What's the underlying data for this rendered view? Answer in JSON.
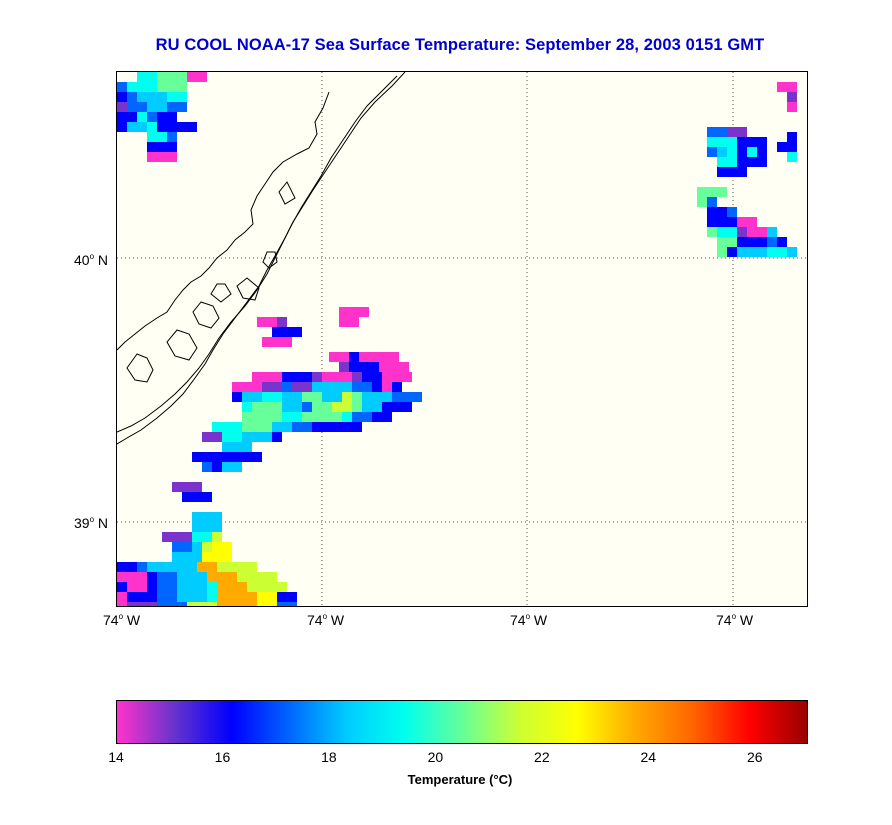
{
  "title": "RU COOL  NOAA-17  Sea Surface Temperature:  September 28, 2003 0151 GMT",
  "map": {
    "lat_labels": [
      {
        "text": "40",
        "unit": "N"
      },
      {
        "text": "39",
        "unit": "N"
      }
    ],
    "lon_labels": [
      {
        "text": "74",
        "unit": "W"
      },
      {
        "text": "74",
        "unit": "W"
      },
      {
        "text": "74",
        "unit": "W"
      },
      {
        "text": "74",
        "unit": "W"
      }
    ]
  },
  "colorbar": {
    "title": "Temperature (°C)",
    "min": 14,
    "max": 27,
    "tick_values": [
      "14",
      "16",
      "18",
      "20",
      "22",
      "24",
      "26"
    ],
    "colors": [
      "#ff33cc",
      "#6633cc",
      "#0000ff",
      "#0066ff",
      "#00ccff",
      "#00ffee",
      "#66ff99",
      "#ccff33",
      "#ffff00",
      "#ffaa00",
      "#ff6600",
      "#ff0000",
      "#990000"
    ]
  }
}
